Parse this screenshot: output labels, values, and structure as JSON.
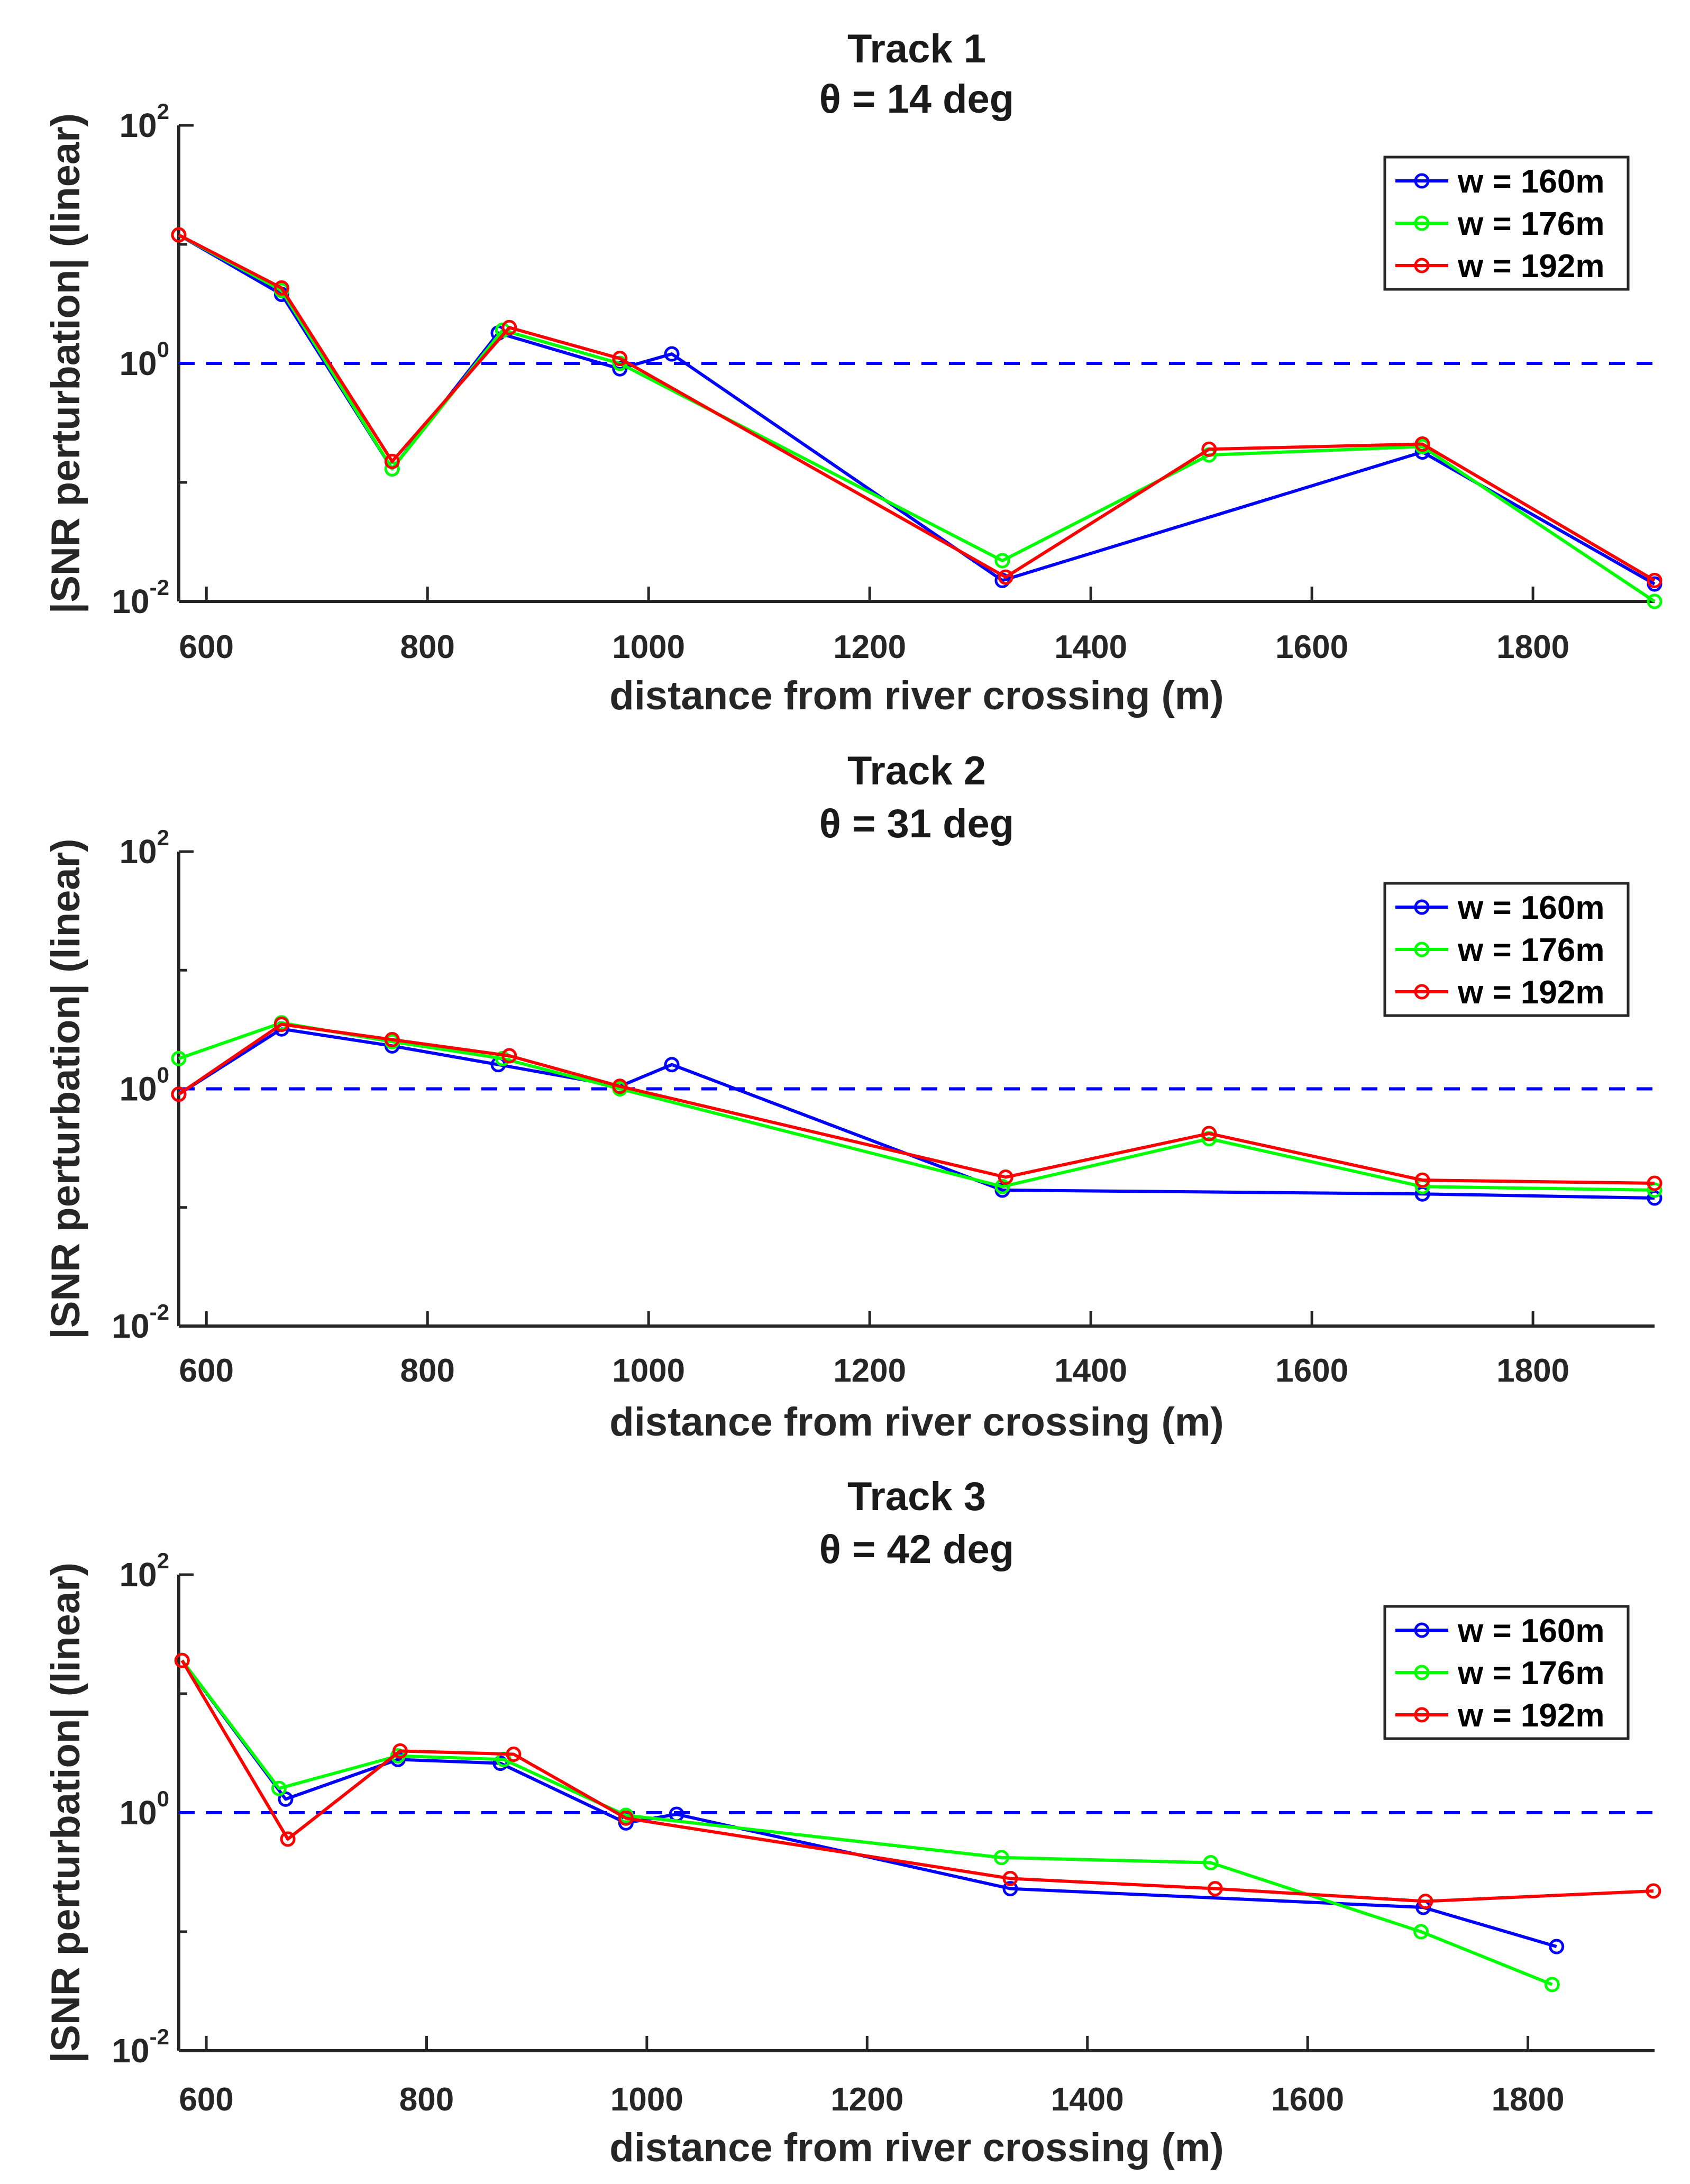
{
  "chart_data": [
    {
      "type": "line",
      "title": "Track 1",
      "subtitle": "θ = 14 deg",
      "xlabel": "distance from river crossing (m)",
      "ylabel": "|SNR perturbation| (linear)",
      "xlim": [
        575,
        1910
      ],
      "ylim": [
        0.01,
        100
      ],
      "yscale": "log",
      "xticks": [
        600,
        800,
        1000,
        1200,
        1400,
        1600,
        1800
      ],
      "reference_line": {
        "y": 1,
        "style": "dashed",
        "color": "#0000ff"
      },
      "legend_position": "top-right",
      "series": [
        {
          "name": "w = 160m",
          "color": "#0000ff",
          "x": [
            575,
            668,
            768,
            864,
            974,
            1021,
            1320,
            1700,
            1910
          ],
          "y": [
            12,
            3.8,
            0.13,
            1.8,
            0.9,
            1.2,
            0.015,
            0.18,
            0.014
          ]
        },
        {
          "name": "w = 176m",
          "color": "#00ff00",
          "x": [
            575,
            668,
            768,
            868,
            974,
            1320,
            1507,
            1700,
            1910
          ],
          "y": [
            12,
            4.1,
            0.13,
            1.9,
            1.0,
            0.022,
            0.17,
            0.2,
            0.01
          ]
        },
        {
          "name": "w = 192m",
          "color": "#ff0000",
          "x": [
            575,
            668,
            768,
            874,
            974,
            1323,
            1507,
            1700,
            1910
          ],
          "y": [
            12,
            4.3,
            0.15,
            2.0,
            1.1,
            0.016,
            0.19,
            0.21,
            0.015
          ]
        }
      ]
    },
    {
      "type": "line",
      "title": "Track 2",
      "subtitle": "θ = 31 deg",
      "xlabel": "distance from river crossing (m)",
      "ylabel": "|SNR perturbation| (linear)",
      "xlim": [
        575,
        1910
      ],
      "ylim": [
        0.01,
        100
      ],
      "yscale": "log",
      "xticks": [
        600,
        800,
        1000,
        1200,
        1400,
        1600,
        1800
      ],
      "reference_line": {
        "y": 1,
        "style": "dashed",
        "color": "#0000ff"
      },
      "legend_position": "top-right",
      "series": [
        {
          "name": "w = 160m",
          "color": "#0000ff",
          "x": [
            575,
            668,
            768,
            864,
            974,
            1021,
            1320,
            1700,
            1910
          ],
          "y": [
            0.9,
            3.2,
            2.3,
            1.6,
            1.05,
            1.6,
            0.14,
            0.13,
            0.12
          ]
        },
        {
          "name": "w = 176m",
          "color": "#00ff00",
          "x": [
            575,
            668,
            768,
            868,
            974,
            1320,
            1507,
            1700,
            1910
          ],
          "y": [
            1.8,
            3.6,
            2.5,
            1.8,
            1.0,
            0.15,
            0.38,
            0.15,
            0.14
          ]
        },
        {
          "name": "w = 192m",
          "color": "#ff0000",
          "x": [
            575,
            668,
            768,
            874,
            974,
            1323,
            1507,
            1700,
            1910
          ],
          "y": [
            0.9,
            3.5,
            2.6,
            1.9,
            1.05,
            0.18,
            0.42,
            0.17,
            0.16
          ]
        }
      ]
    },
    {
      "type": "line",
      "title": "Track 3",
      "subtitle": "θ = 42 deg",
      "xlabel": "distance from river crossing (m)",
      "ylabel": "|SNR perturbation| (linear)",
      "xlim": [
        575,
        1915
      ],
      "ylim": [
        0.01,
        100
      ],
      "yscale": "log",
      "xticks": [
        600,
        800,
        1000,
        1200,
        1400,
        1600,
        1800
      ],
      "reference_line": {
        "y": 1,
        "style": "dashed",
        "color": "#0000ff"
      },
      "legend_position": "top-right",
      "series": [
        {
          "name": "w = 160m",
          "color": "#0000ff",
          "x": [
            578,
            672,
            774,
            867,
            981,
            1027,
            1330,
            1705,
            1826
          ],
          "y": [
            19,
            1.3,
            2.8,
            2.6,
            0.82,
            0.97,
            0.23,
            0.16,
            0.075
          ]
        },
        {
          "name": "w = 176m",
          "color": "#00ff00",
          "x": [
            578,
            666,
            774,
            870,
            981,
            1322,
            1512,
            1703,
            1822
          ],
          "y": [
            19,
            1.6,
            3.0,
            2.8,
            0.95,
            0.42,
            0.38,
            0.1,
            0.036
          ]
        },
        {
          "name": "w = 192m",
          "color": "#ff0000",
          "x": [
            578,
            674,
            776,
            879,
            981,
            1330,
            1516,
            1707,
            1914
          ],
          "y": [
            19,
            0.6,
            3.3,
            3.1,
            0.9,
            0.28,
            0.23,
            0.18,
            0.22
          ]
        }
      ]
    }
  ]
}
